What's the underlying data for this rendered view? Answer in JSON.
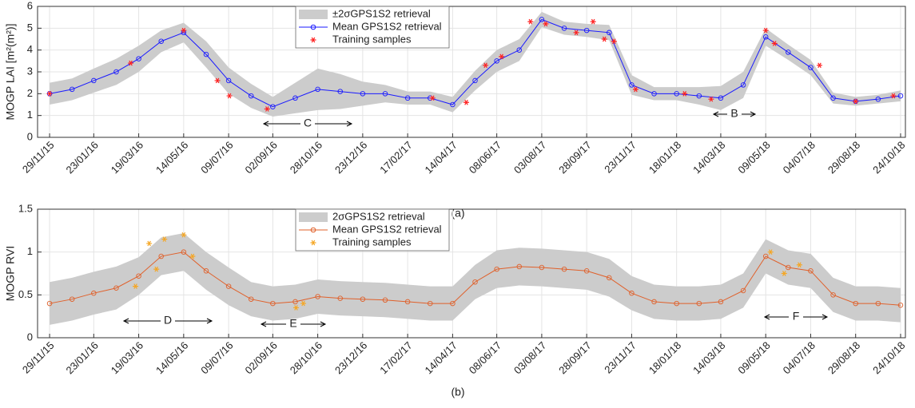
{
  "chart_data": [
    {
      "type": "line",
      "panel_label": "(a)",
      "y_label": "MOGP LAI [m²(m²)]",
      "x": [
        "29/11/15",
        "27/12/15",
        "23/01/16",
        "20/02/16",
        "19/03/16",
        "16/04/16",
        "14/05/16",
        "11/06/16",
        "09/07/16",
        "06/08/16",
        "02/09/16",
        "30/09/16",
        "28/10/16",
        "25/11/16",
        "23/12/16",
        "20/01/17",
        "17/02/17",
        "17/03/17",
        "14/04/17",
        "12/05/17",
        "08/06/17",
        "06/07/17",
        "03/08/17",
        "31/08/17",
        "28/09/17",
        "26/10/17",
        "23/11/17",
        "21/12/17",
        "18/01/18",
        "15/02/18",
        "14/03/18",
        "11/04/18",
        "09/05/18",
        "06/06/18",
        "04/07/18",
        "01/08/18",
        "29/08/18",
        "26/09/18",
        "24/10/18"
      ],
      "band": {
        "name": "±2σGPS1S2 retrieval",
        "color": "#cccccc",
        "values": [
          0.5,
          0.5,
          0.55,
          0.6,
          0.6,
          0.5,
          0.45,
          0.6,
          0.6,
          0.55,
          0.45,
          0.7,
          0.95,
          0.8,
          0.55,
          0.4,
          0.3,
          0.3,
          0.35,
          0.45,
          0.5,
          0.5,
          0.35,
          0.3,
          0.3,
          0.35,
          0.45,
          0.3,
          0.3,
          0.4,
          0.55,
          0.6,
          0.4,
          0.35,
          0.35,
          0.25,
          0.2,
          0.2,
          0.25
        ]
      },
      "series": [
        {
          "name": "Mean GPS1S2 retrieval",
          "color": "#1a1aff",
          "values": [
            2.0,
            2.2,
            2.6,
            3.0,
            3.6,
            4.4,
            4.8,
            3.8,
            2.6,
            1.9,
            1.4,
            1.8,
            2.2,
            2.1,
            2.0,
            2.0,
            1.8,
            1.8,
            1.5,
            2.6,
            3.5,
            4.0,
            5.4,
            5.0,
            4.9,
            4.8,
            2.4,
            2.0,
            2.0,
            1.9,
            1.8,
            2.4,
            4.6,
            3.9,
            3.2,
            1.8,
            1.65,
            1.75,
            1.9
          ]
        },
        {
          "name": "Training samples",
          "color": "#ff2020",
          "marker": "star",
          "x": [
            "29/11/15",
            "09/03/16",
            "14/05/16",
            "25/06/16",
            "10/07/16",
            "26/08/16",
            "20/03/17",
            "01/05/17",
            "25/05/17",
            "14/06/17",
            "20/07/17",
            "08/08/17",
            "15/09/17",
            "06/10/17",
            "20/10/17",
            "01/11/17",
            "28/11/17",
            "28/01/18",
            "02/03/18",
            "09/05/18",
            "20/05/18",
            "15/07/18",
            "29/08/18",
            "15/10/18"
          ],
          "values": [
            2.0,
            3.4,
            4.9,
            2.6,
            1.9,
            1.3,
            1.8,
            1.6,
            3.3,
            3.7,
            5.3,
            5.2,
            4.8,
            5.3,
            4.5,
            4.4,
            2.2,
            2.0,
            1.75,
            4.9,
            4.3,
            3.3,
            1.65,
            1.9
          ]
        }
      ],
      "xlim": [
        "14/11/15",
        "30/10/18"
      ],
      "xticks": [
        "29/11/15",
        "23/01/16",
        "19/03/16",
        "14/05/16",
        "09/07/16",
        "02/09/16",
        "28/10/16",
        "23/12/16",
        "17/02/17",
        "14/04/17",
        "08/06/17",
        "03/08/17",
        "28/09/17",
        "23/11/17",
        "18/01/18",
        "14/03/18",
        "09/05/18",
        "04/07/18",
        "29/08/18",
        "24/10/18"
      ],
      "ylim": [
        0,
        6
      ],
      "yticks": [
        0,
        1,
        2,
        3,
        4,
        5,
        6
      ],
      "grid": true,
      "annotations": [
        "C",
        "B"
      ]
    },
    {
      "type": "line",
      "panel_label": "(b)",
      "y_label": "MOGP RVI",
      "x": [
        "29/11/15",
        "27/12/15",
        "23/01/16",
        "20/02/16",
        "19/03/16",
        "16/04/16",
        "14/05/16",
        "11/06/16",
        "09/07/16",
        "06/08/16",
        "02/09/16",
        "30/09/16",
        "28/10/16",
        "25/11/16",
        "23/12/16",
        "20/01/17",
        "17/02/17",
        "17/03/17",
        "14/04/17",
        "12/05/17",
        "08/06/17",
        "06/07/17",
        "03/08/17",
        "31/08/17",
        "28/09/17",
        "26/10/17",
        "23/11/17",
        "21/12/17",
        "18/01/18",
        "15/02/18",
        "14/03/18",
        "11/04/18",
        "09/05/18",
        "06/06/18",
        "04/07/18",
        "01/08/18",
        "29/08/18",
        "26/09/18",
        "24/10/18"
      ],
      "band": {
        "name": "2σGPS1S2 retrieval",
        "color": "#cccccc",
        "values": [
          0.25,
          0.25,
          0.25,
          0.25,
          0.22,
          0.22,
          0.22,
          0.22,
          0.22,
          0.2,
          0.2,
          0.2,
          0.2,
          0.2,
          0.2,
          0.2,
          0.2,
          0.2,
          0.2,
          0.2,
          0.22,
          0.22,
          0.22,
          0.22,
          0.22,
          0.22,
          0.2,
          0.2,
          0.2,
          0.2,
          0.2,
          0.2,
          0.2,
          0.2,
          0.2,
          0.2,
          0.2,
          0.2,
          0.2
        ]
      },
      "series": [
        {
          "name": "Mean GPS1S2 retrieval",
          "color": "#e0602a",
          "values": [
            0.4,
            0.45,
            0.52,
            0.58,
            0.72,
            0.95,
            1.0,
            0.78,
            0.6,
            0.45,
            0.4,
            0.42,
            0.48,
            0.46,
            0.45,
            0.44,
            0.42,
            0.4,
            0.4,
            0.65,
            0.8,
            0.83,
            0.82,
            0.8,
            0.78,
            0.7,
            0.52,
            0.42,
            0.4,
            0.4,
            0.42,
            0.55,
            0.95,
            0.82,
            0.78,
            0.5,
            0.4,
            0.4,
            0.38
          ]
        },
        {
          "name": "Training samples",
          "color": "#f5a623",
          "marker": "star",
          "x": [
            "15/03/16",
            "01/04/16",
            "10/04/16",
            "20/04/16",
            "14/05/16",
            "25/05/16",
            "01/10/16",
            "10/10/16",
            "15/05/18",
            "01/06/18",
            "20/06/18"
          ],
          "values": [
            0.6,
            1.1,
            0.8,
            1.15,
            1.2,
            0.95,
            0.35,
            0.4,
            1.0,
            0.75,
            0.85
          ]
        }
      ],
      "xlim": [
        "14/11/15",
        "30/10/18"
      ],
      "xticks": [
        "29/11/15",
        "23/01/16",
        "19/03/16",
        "14/05/16",
        "09/07/16",
        "02/09/16",
        "28/10/16",
        "23/12/16",
        "17/02/17",
        "14/04/17",
        "08/06/17",
        "03/08/17",
        "28/09/17",
        "23/11/17",
        "18/01/18",
        "14/03/18",
        "09/05/18",
        "04/07/18",
        "29/08/18",
        "24/10/18"
      ],
      "ylim": [
        0,
        1.5
      ],
      "yticks": [
        0,
        0.5,
        1,
        1.5
      ],
      "grid": true,
      "annotations": [
        "D",
        "E",
        "F"
      ]
    }
  ]
}
